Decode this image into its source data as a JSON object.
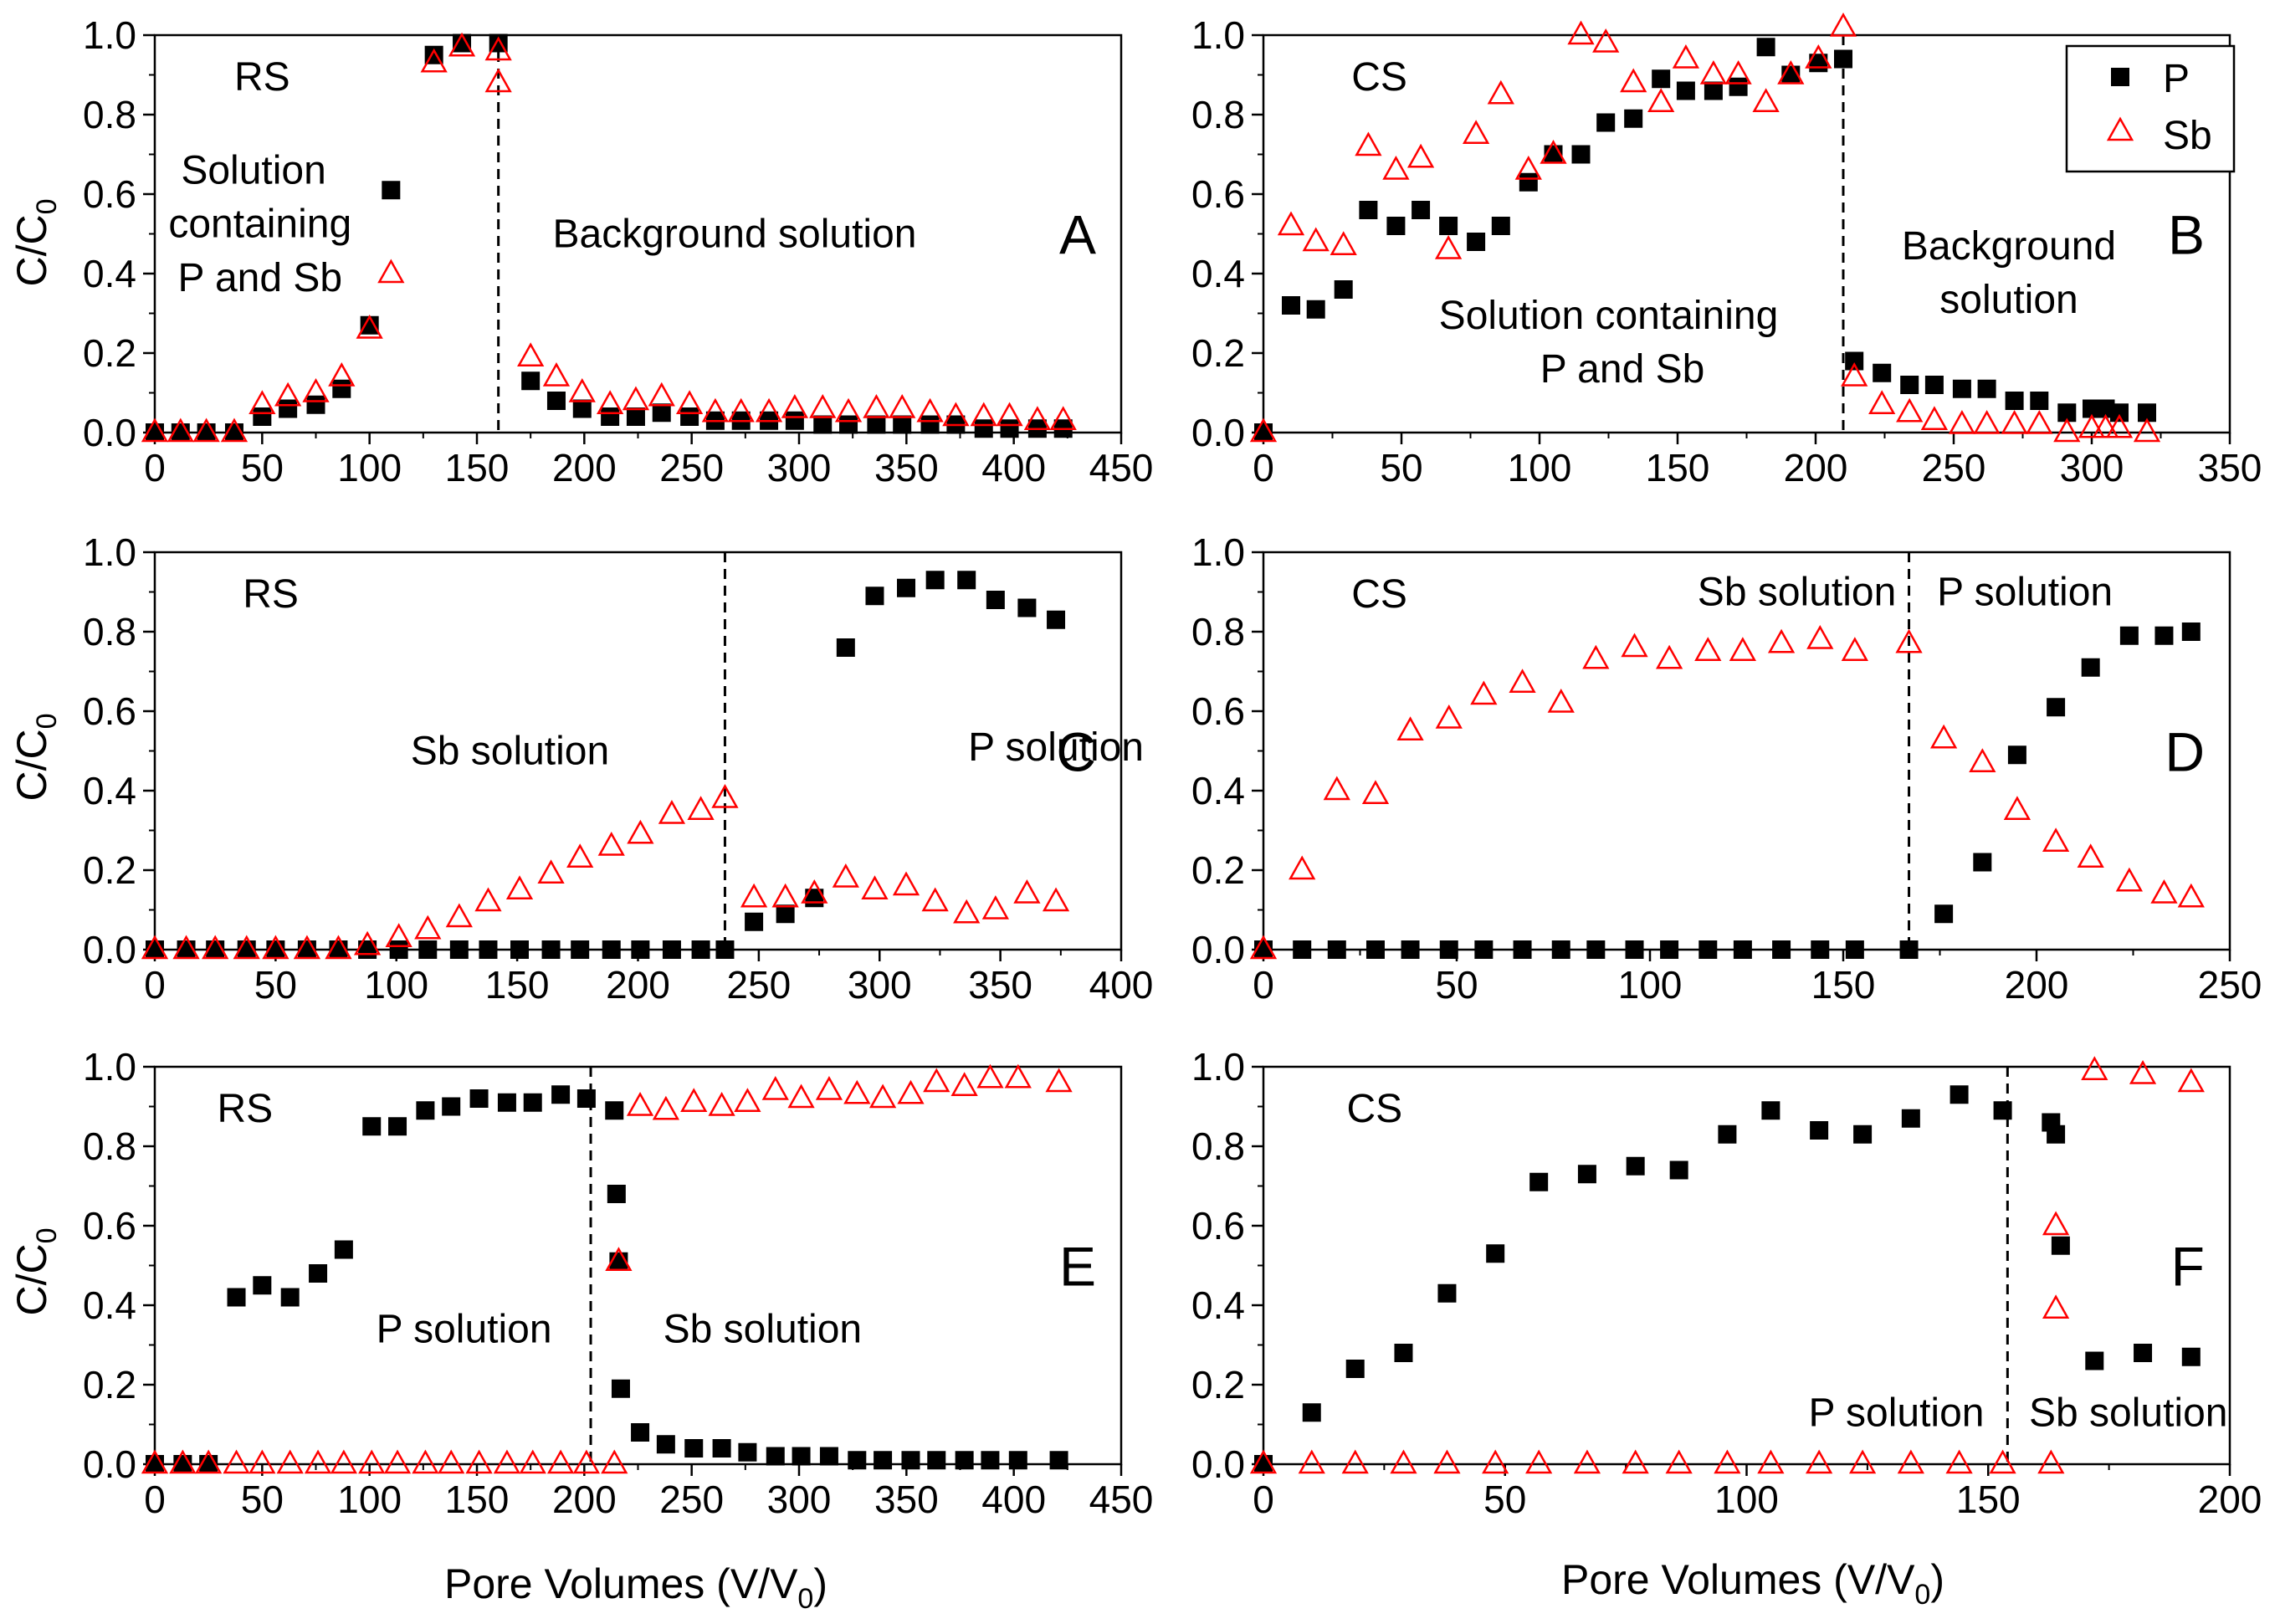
{
  "figure": {
    "x_axis_title": "Pore Volumes (V/V",
    "x_axis_title_sub": "0",
    "x_axis_title_end": ")",
    "y_axis_title": "C/C",
    "y_axis_title_sub": "0"
  },
  "legend": {
    "p_label": "P",
    "sb_label": "Sb",
    "p_color": "#000000",
    "sb_color": "#ff0000"
  },
  "chart_data": [
    {
      "id": "A",
      "type": "scatter",
      "letter": "A",
      "xlim": [
        0,
        450
      ],
      "xticks": [
        0,
        50,
        100,
        150,
        200,
        250,
        300,
        350,
        400,
        450
      ],
      "ylim": [
        0,
        1
      ],
      "yticks": [
        0.0,
        0.2,
        0.4,
        0.6,
        0.8,
        1.0
      ],
      "divider_x": 160,
      "labels": [
        {
          "text": "RS",
          "x": 50,
          "y": 0.895
        },
        {
          "text": "Solution",
          "x": 46,
          "y": 0.66
        },
        {
          "text": "containing",
          "x": 49,
          "y": 0.525
        },
        {
          "text": "P and Sb",
          "x": 49,
          "y": 0.39
        },
        {
          "text": "Background solution",
          "x": 270,
          "y": 0.5
        }
      ],
      "series": [
        {
          "name": "P",
          "x": [
            0,
            12,
            24,
            37,
            50,
            62,
            75,
            87,
            100,
            110,
            130,
            143,
            160,
            175,
            187,
            199,
            212,
            224,
            236,
            249,
            261,
            273,
            286,
            298,
            311,
            323,
            336,
            348,
            361,
            373,
            386,
            398,
            411,
            423
          ],
          "y": [
            0.0,
            0.0,
            0.0,
            0.0,
            0.04,
            0.06,
            0.07,
            0.11,
            0.27,
            0.61,
            0.95,
            0.98,
            0.98,
            0.13,
            0.08,
            0.06,
            0.04,
            0.04,
            0.05,
            0.04,
            0.03,
            0.03,
            0.03,
            0.03,
            0.02,
            0.02,
            0.02,
            0.02,
            0.02,
            0.02,
            0.01,
            0.01,
            0.01,
            0.01
          ]
        },
        {
          "name": "Sb",
          "x": [
            0,
            12,
            24,
            37,
            50,
            62,
            75,
            87,
            100,
            110,
            130,
            143,
            160,
            160,
            175,
            187,
            199,
            212,
            224,
            236,
            249,
            261,
            273,
            286,
            298,
            311,
            323,
            336,
            348,
            361,
            373,
            386,
            398,
            411,
            423
          ],
          "y": [
            0.0,
            0.0,
            0.0,
            0.0,
            0.07,
            0.09,
            0.1,
            0.14,
            0.26,
            0.4,
            0.93,
            0.97,
            0.96,
            0.88,
            0.19,
            0.14,
            0.1,
            0.07,
            0.08,
            0.09,
            0.07,
            0.05,
            0.05,
            0.05,
            0.06,
            0.06,
            0.05,
            0.06,
            0.06,
            0.05,
            0.04,
            0.04,
            0.04,
            0.03,
            0.03
          ]
        }
      ]
    },
    {
      "id": "B",
      "type": "scatter",
      "letter": "B",
      "xlim": [
        0,
        350
      ],
      "xticks": [
        0,
        50,
        100,
        150,
        200,
        250,
        300,
        350
      ],
      "ylim": [
        0,
        1
      ],
      "yticks": [
        0.0,
        0.2,
        0.4,
        0.6,
        0.8,
        1.0
      ],
      "divider_x": 210,
      "legend": true,
      "labels": [
        {
          "text": "CS",
          "x": 42,
          "y": 0.895
        },
        {
          "text": "Solution containing",
          "x": 125,
          "y": 0.295
        },
        {
          "text": "P and Sb",
          "x": 130,
          "y": 0.16
        },
        {
          "text": "Background",
          "x": 270,
          "y": 0.47
        },
        {
          "text": "solution",
          "x": 270,
          "y": 0.335
        }
      ],
      "series": [
        {
          "name": "P",
          "x": [
            0,
            10,
            19,
            29,
            38,
            48,
            57,
            67,
            77,
            86,
            96,
            105,
            115,
            124,
            134,
            144,
            153,
            163,
            172,
            182,
            191,
            201,
            210,
            214,
            224,
            234,
            243,
            253,
            262,
            272,
            281,
            291,
            300,
            305,
            310,
            320
          ],
          "y": [
            0.0,
            0.32,
            0.31,
            0.36,
            0.56,
            0.52,
            0.56,
            0.52,
            0.48,
            0.52,
            0.63,
            0.7,
            0.7,
            0.78,
            0.79,
            0.89,
            0.86,
            0.86,
            0.87,
            0.97,
            0.9,
            0.93,
            0.94,
            0.18,
            0.15,
            0.12,
            0.12,
            0.11,
            0.11,
            0.08,
            0.08,
            0.05,
            0.06,
            0.06,
            0.05,
            0.05
          ]
        },
        {
          "name": "Sb",
          "x": [
            0,
            10,
            19,
            29,
            38,
            48,
            57,
            67,
            77,
            86,
            96,
            105,
            115,
            124,
            134,
            144,
            153,
            163,
            172,
            182,
            191,
            201,
            210,
            214,
            224,
            234,
            243,
            253,
            262,
            272,
            281,
            291,
            300,
            305,
            310,
            320
          ],
          "y": [
            0.0,
            0.52,
            0.48,
            0.47,
            0.72,
            0.66,
            0.69,
            0.46,
            0.75,
            0.85,
            0.66,
            0.7,
            1.0,
            0.98,
            0.88,
            0.83,
            0.94,
            0.9,
            0.9,
            0.83,
            0.9,
            0.94,
            1.02,
            0.14,
            0.07,
            0.05,
            0.03,
            0.02,
            0.02,
            0.02,
            0.02,
            0.0,
            0.01,
            0.01,
            0.01,
            0.0
          ]
        }
      ]
    },
    {
      "id": "C",
      "type": "scatter",
      "letter": "C",
      "xlim": [
        0,
        400
      ],
      "xticks": [
        0,
        50,
        100,
        150,
        200,
        250,
        300,
        350,
        400
      ],
      "ylim": [
        0,
        1
      ],
      "yticks": [
        0.0,
        0.2,
        0.4,
        0.6,
        0.8,
        1.0
      ],
      "divider_x": 236,
      "labels": [
        {
          "text": "RS",
          "x": 48,
          "y": 0.895
        },
        {
          "text": "Sb solution",
          "x": 147,
          "y": 0.5
        },
        {
          "text": "P solution",
          "x": 373,
          "y": 0.51
        }
      ],
      "series": [
        {
          "name": "P",
          "x": [
            0,
            13,
            25,
            38,
            50,
            63,
            76,
            88,
            101,
            113,
            126,
            138,
            151,
            164,
            176,
            189,
            201,
            214,
            226,
            236,
            248,
            261,
            273,
            286,
            298,
            311,
            323,
            336,
            348,
            361,
            373
          ],
          "y": [
            0.0,
            0.0,
            0.0,
            0.0,
            0.0,
            0.0,
            0.0,
            0.0,
            0.0,
            0.0,
            0.0,
            0.0,
            0.0,
            0.0,
            0.0,
            0.0,
            0.0,
            0.0,
            0.0,
            0.0,
            0.07,
            0.09,
            0.13,
            0.76,
            0.89,
            0.91,
            0.93,
            0.93,
            0.88,
            0.86,
            0.83
          ]
        },
        {
          "name": "Sb",
          "x": [
            0,
            13,
            25,
            38,
            50,
            63,
            76,
            88,
            101,
            113,
            126,
            138,
            151,
            164,
            176,
            189,
            201,
            214,
            226,
            236,
            248,
            261,
            273,
            286,
            298,
            311,
            323,
            336,
            348,
            361,
            373
          ],
          "y": [
            0.0,
            0.0,
            0.0,
            0.0,
            0.0,
            0.0,
            0.0,
            0.01,
            0.03,
            0.05,
            0.08,
            0.12,
            0.15,
            0.19,
            0.23,
            0.26,
            0.29,
            0.34,
            0.35,
            0.38,
            0.13,
            0.13,
            0.14,
            0.18,
            0.15,
            0.16,
            0.12,
            0.09,
            0.1,
            0.14,
            0.12
          ]
        }
      ]
    },
    {
      "id": "D",
      "type": "scatter",
      "letter": "D",
      "xlim": [
        0,
        250
      ],
      "xticks": [
        0,
        50,
        100,
        150,
        200,
        250
      ],
      "ylim": [
        0,
        1
      ],
      "yticks": [
        0.0,
        0.2,
        0.4,
        0.6,
        0.8,
        1.0
      ],
      "divider_x": 167,
      "labels": [
        {
          "text": "CS",
          "x": 30,
          "y": 0.895
        },
        {
          "text": "Sb solution",
          "x": 138,
          "y": 0.9
        },
        {
          "text": "P solution",
          "x": 197,
          "y": 0.9
        }
      ],
      "series": [
        {
          "name": "P",
          "x": [
            0,
            10,
            19,
            29,
            38,
            48,
            57,
            67,
            77,
            86,
            96,
            105,
            115,
            124,
            134,
            144,
            153,
            167,
            176,
            186,
            195,
            205,
            214,
            224,
            233,
            240
          ],
          "y": [
            0.0,
            0.0,
            0.0,
            0.0,
            0.0,
            0.0,
            0.0,
            0.0,
            0.0,
            0.0,
            0.0,
            0.0,
            0.0,
            0.0,
            0.0,
            0.0,
            0.0,
            0.0,
            0.09,
            0.22,
            0.49,
            0.61,
            0.71,
            0.79,
            0.79,
            0.8
          ]
        },
        {
          "name": "Sb",
          "x": [
            0,
            10,
            19,
            29,
            38,
            48,
            57,
            67,
            77,
            86,
            96,
            105,
            115,
            124,
            134,
            144,
            153,
            167,
            176,
            186,
            195,
            205,
            214,
            224,
            233,
            240
          ],
          "y": [
            0.0,
            0.2,
            0.4,
            0.39,
            0.55,
            0.58,
            0.64,
            0.67,
            0.62,
            0.73,
            0.76,
            0.73,
            0.75,
            0.75,
            0.77,
            0.78,
            0.75,
            0.77,
            0.53,
            0.47,
            0.35,
            0.27,
            0.23,
            0.17,
            0.14,
            0.13
          ]
        }
      ]
    },
    {
      "id": "E",
      "type": "scatter",
      "letter": "E",
      "xlim": [
        0,
        450
      ],
      "xticks": [
        0,
        50,
        100,
        150,
        200,
        250,
        300,
        350,
        400,
        450
      ],
      "ylim": [
        0,
        1
      ],
      "yticks": [
        0.0,
        0.2,
        0.4,
        0.6,
        0.8,
        1.0
      ],
      "divider_x": 203,
      "labels": [
        {
          "text": "RS",
          "x": 42,
          "y": 0.895
        },
        {
          "text": "P solution",
          "x": 144,
          "y": 0.34
        },
        {
          "text": "Sb solution",
          "x": 283,
          "y": 0.34
        }
      ],
      "series": [
        {
          "name": "P",
          "x": [
            0,
            13,
            25,
            38,
            50,
            63,
            76,
            88,
            101,
            113,
            126,
            138,
            151,
            164,
            176,
            189,
            201,
            214,
            215,
            216,
            217,
            226,
            238,
            251,
            264,
            276,
            289,
            301,
            314,
            327,
            339,
            352,
            364,
            377,
            389,
            402,
            421
          ],
          "y": [
            0.0,
            0.0,
            0.0,
            0.42,
            0.45,
            0.42,
            0.48,
            0.54,
            0.85,
            0.85,
            0.89,
            0.9,
            0.92,
            0.91,
            0.91,
            0.93,
            0.92,
            0.89,
            0.68,
            0.51,
            0.19,
            0.08,
            0.05,
            0.04,
            0.04,
            0.03,
            0.02,
            0.02,
            0.02,
            0.01,
            0.01,
            0.01,
            0.01,
            0.01,
            0.01,
            0.01,
            0.01
          ]
        },
        {
          "name": "Sb",
          "x": [
            0,
            13,
            25,
            38,
            50,
            63,
            76,
            88,
            101,
            113,
            126,
            138,
            151,
            164,
            176,
            189,
            201,
            214,
            216,
            226,
            238,
            251,
            264,
            276,
            289,
            301,
            314,
            327,
            339,
            352,
            364,
            377,
            389,
            402,
            421
          ],
          "y": [
            0.0,
            0.0,
            0.0,
            0.0,
            0.0,
            0.0,
            0.0,
            0.0,
            0.0,
            0.0,
            0.0,
            0.0,
            0.0,
            0.0,
            0.0,
            0.0,
            0.0,
            0.0,
            0.51,
            0.9,
            0.89,
            0.91,
            0.9,
            0.91,
            0.94,
            0.92,
            0.94,
            0.93,
            0.92,
            0.93,
            0.96,
            0.95,
            0.97,
            0.97,
            0.96
          ]
        }
      ]
    },
    {
      "id": "F",
      "type": "scatter",
      "letter": "F",
      "xlim": [
        0,
        200
      ],
      "xticks": [
        0,
        50,
        100,
        150,
        200
      ],
      "ylim": [
        0,
        1
      ],
      "yticks": [
        0.0,
        0.2,
        0.4,
        0.6,
        0.8,
        1.0
      ],
      "divider_x": 154,
      "labels": [
        {
          "text": "CS",
          "x": 23,
          "y": 0.895
        },
        {
          "text": "P solution",
          "x": 131,
          "y": 0.13
        },
        {
          "text": "Sb solution",
          "x": 179,
          "y": 0.13
        }
      ],
      "series": [
        {
          "name": "P",
          "x": [
            0,
            10,
            19,
            29,
            38,
            48,
            57,
            67,
            77,
            86,
            96,
            105,
            115,
            124,
            134,
            144,
            153,
            163,
            164,
            165,
            172,
            182,
            192
          ],
          "y": [
            0.0,
            0.13,
            0.24,
            0.28,
            0.43,
            0.53,
            0.71,
            0.73,
            0.75,
            0.74,
            0.83,
            0.89,
            0.84,
            0.83,
            0.87,
            0.93,
            0.89,
            0.86,
            0.83,
            0.55,
            0.26,
            0.28,
            0.27
          ]
        },
        {
          "name": "Sb",
          "x": [
            0,
            10,
            19,
            29,
            38,
            48,
            57,
            67,
            77,
            86,
            96,
            105,
            115,
            124,
            134,
            144,
            153,
            163,
            164,
            164,
            172,
            182,
            192
          ],
          "y": [
            0.0,
            0.0,
            0.0,
            0.0,
            0.0,
            0.0,
            0.0,
            0.0,
            0.0,
            0.0,
            0.0,
            0.0,
            0.0,
            0.0,
            0.0,
            0.0,
            0.0,
            0.0,
            0.39,
            0.6,
            0.99,
            0.98,
            0.96
          ]
        }
      ]
    }
  ]
}
